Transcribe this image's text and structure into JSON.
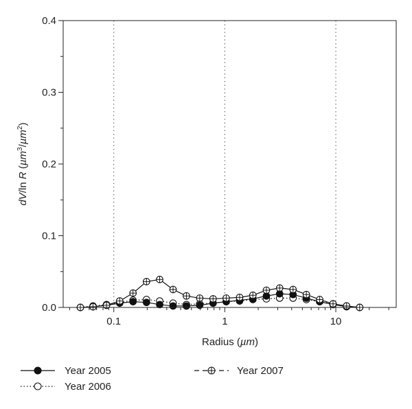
{
  "chart_data": {
    "type": "line",
    "xlabel": {
      "prefix": "Radius (",
      "unit": "µm",
      "suffix": ")"
    },
    "ylabel": {
      "parts": [
        "dV",
        "/ln ",
        "R",
        " (",
        "µm",
        "3",
        "/",
        "µm",
        "2",
        ")"
      ]
    },
    "x_scale": "log",
    "xlim": [
      0.035,
      35
    ],
    "ylim": [
      0,
      0.4
    ],
    "x_tick_labels": [
      "0.1",
      "1",
      "10"
    ],
    "x_ticks": [
      0.1,
      1,
      10
    ],
    "y_tick_labels": [
      "0.0",
      "0.1",
      "0.2",
      "0.3",
      "0.4"
    ],
    "y_ticks": [
      0.0,
      0.1,
      0.2,
      0.3,
      0.4
    ],
    "vertical_grid": "dotted at 0.1, 1, 10",
    "legend_position": "bottom",
    "series": [
      {
        "name": "Year 2005",
        "marker": "filled-circle",
        "linestyle": "solid",
        "color": "#111111",
        "x": [
          0.05,
          0.065,
          0.086,
          0.113,
          0.149,
          0.197,
          0.259,
          0.342,
          0.451,
          0.594,
          0.784,
          1.03,
          1.36,
          1.79,
          2.37,
          3.12,
          4.12,
          5.43,
          7.16,
          9.44,
          12.5,
          16.4
        ],
        "y": [
          0.0,
          0.001,
          0.003,
          0.006,
          0.008,
          0.007,
          0.004,
          0.002,
          0.002,
          0.003,
          0.006,
          0.008,
          0.01,
          0.012,
          0.016,
          0.019,
          0.018,
          0.013,
          0.008,
          0.004,
          0.001,
          0.0
        ]
      },
      {
        "name": "Year 2006",
        "marker": "open-circle",
        "linestyle": "dotted",
        "color": "#111111",
        "x": [
          0.05,
          0.065,
          0.086,
          0.113,
          0.149,
          0.197,
          0.259,
          0.342,
          0.451,
          0.594,
          0.784,
          1.03,
          1.36,
          1.79,
          2.37,
          3.12,
          4.12,
          5.43,
          7.16,
          9.44,
          12.5,
          16.4
        ],
        "y": [
          0.0,
          0.002,
          0.004,
          0.007,
          0.01,
          0.011,
          0.009,
          0.006,
          0.004,
          0.005,
          0.006,
          0.008,
          0.009,
          0.011,
          0.012,
          0.013,
          0.013,
          0.011,
          0.008,
          0.005,
          0.002,
          0.0
        ]
      },
      {
        "name": "Year 2007",
        "marker": "crossed-circle",
        "linestyle": "solid",
        "color": "#111111",
        "x": [
          0.05,
          0.065,
          0.086,
          0.113,
          0.149,
          0.197,
          0.259,
          0.342,
          0.451,
          0.594,
          0.784,
          1.03,
          1.36,
          1.79,
          2.37,
          3.12,
          4.12,
          5.43,
          7.16,
          9.44,
          12.5,
          16.4
        ],
        "y": [
          0.0,
          0.001,
          0.003,
          0.009,
          0.02,
          0.036,
          0.039,
          0.025,
          0.016,
          0.013,
          0.012,
          0.013,
          0.014,
          0.017,
          0.024,
          0.027,
          0.025,
          0.018,
          0.011,
          0.005,
          0.002,
          0.0
        ]
      }
    ],
    "legend": [
      {
        "label": "Year 2005",
        "series": 0
      },
      {
        "label": "Year 2006",
        "series": 1
      },
      {
        "label": "Year 2007",
        "series": 2
      }
    ]
  }
}
